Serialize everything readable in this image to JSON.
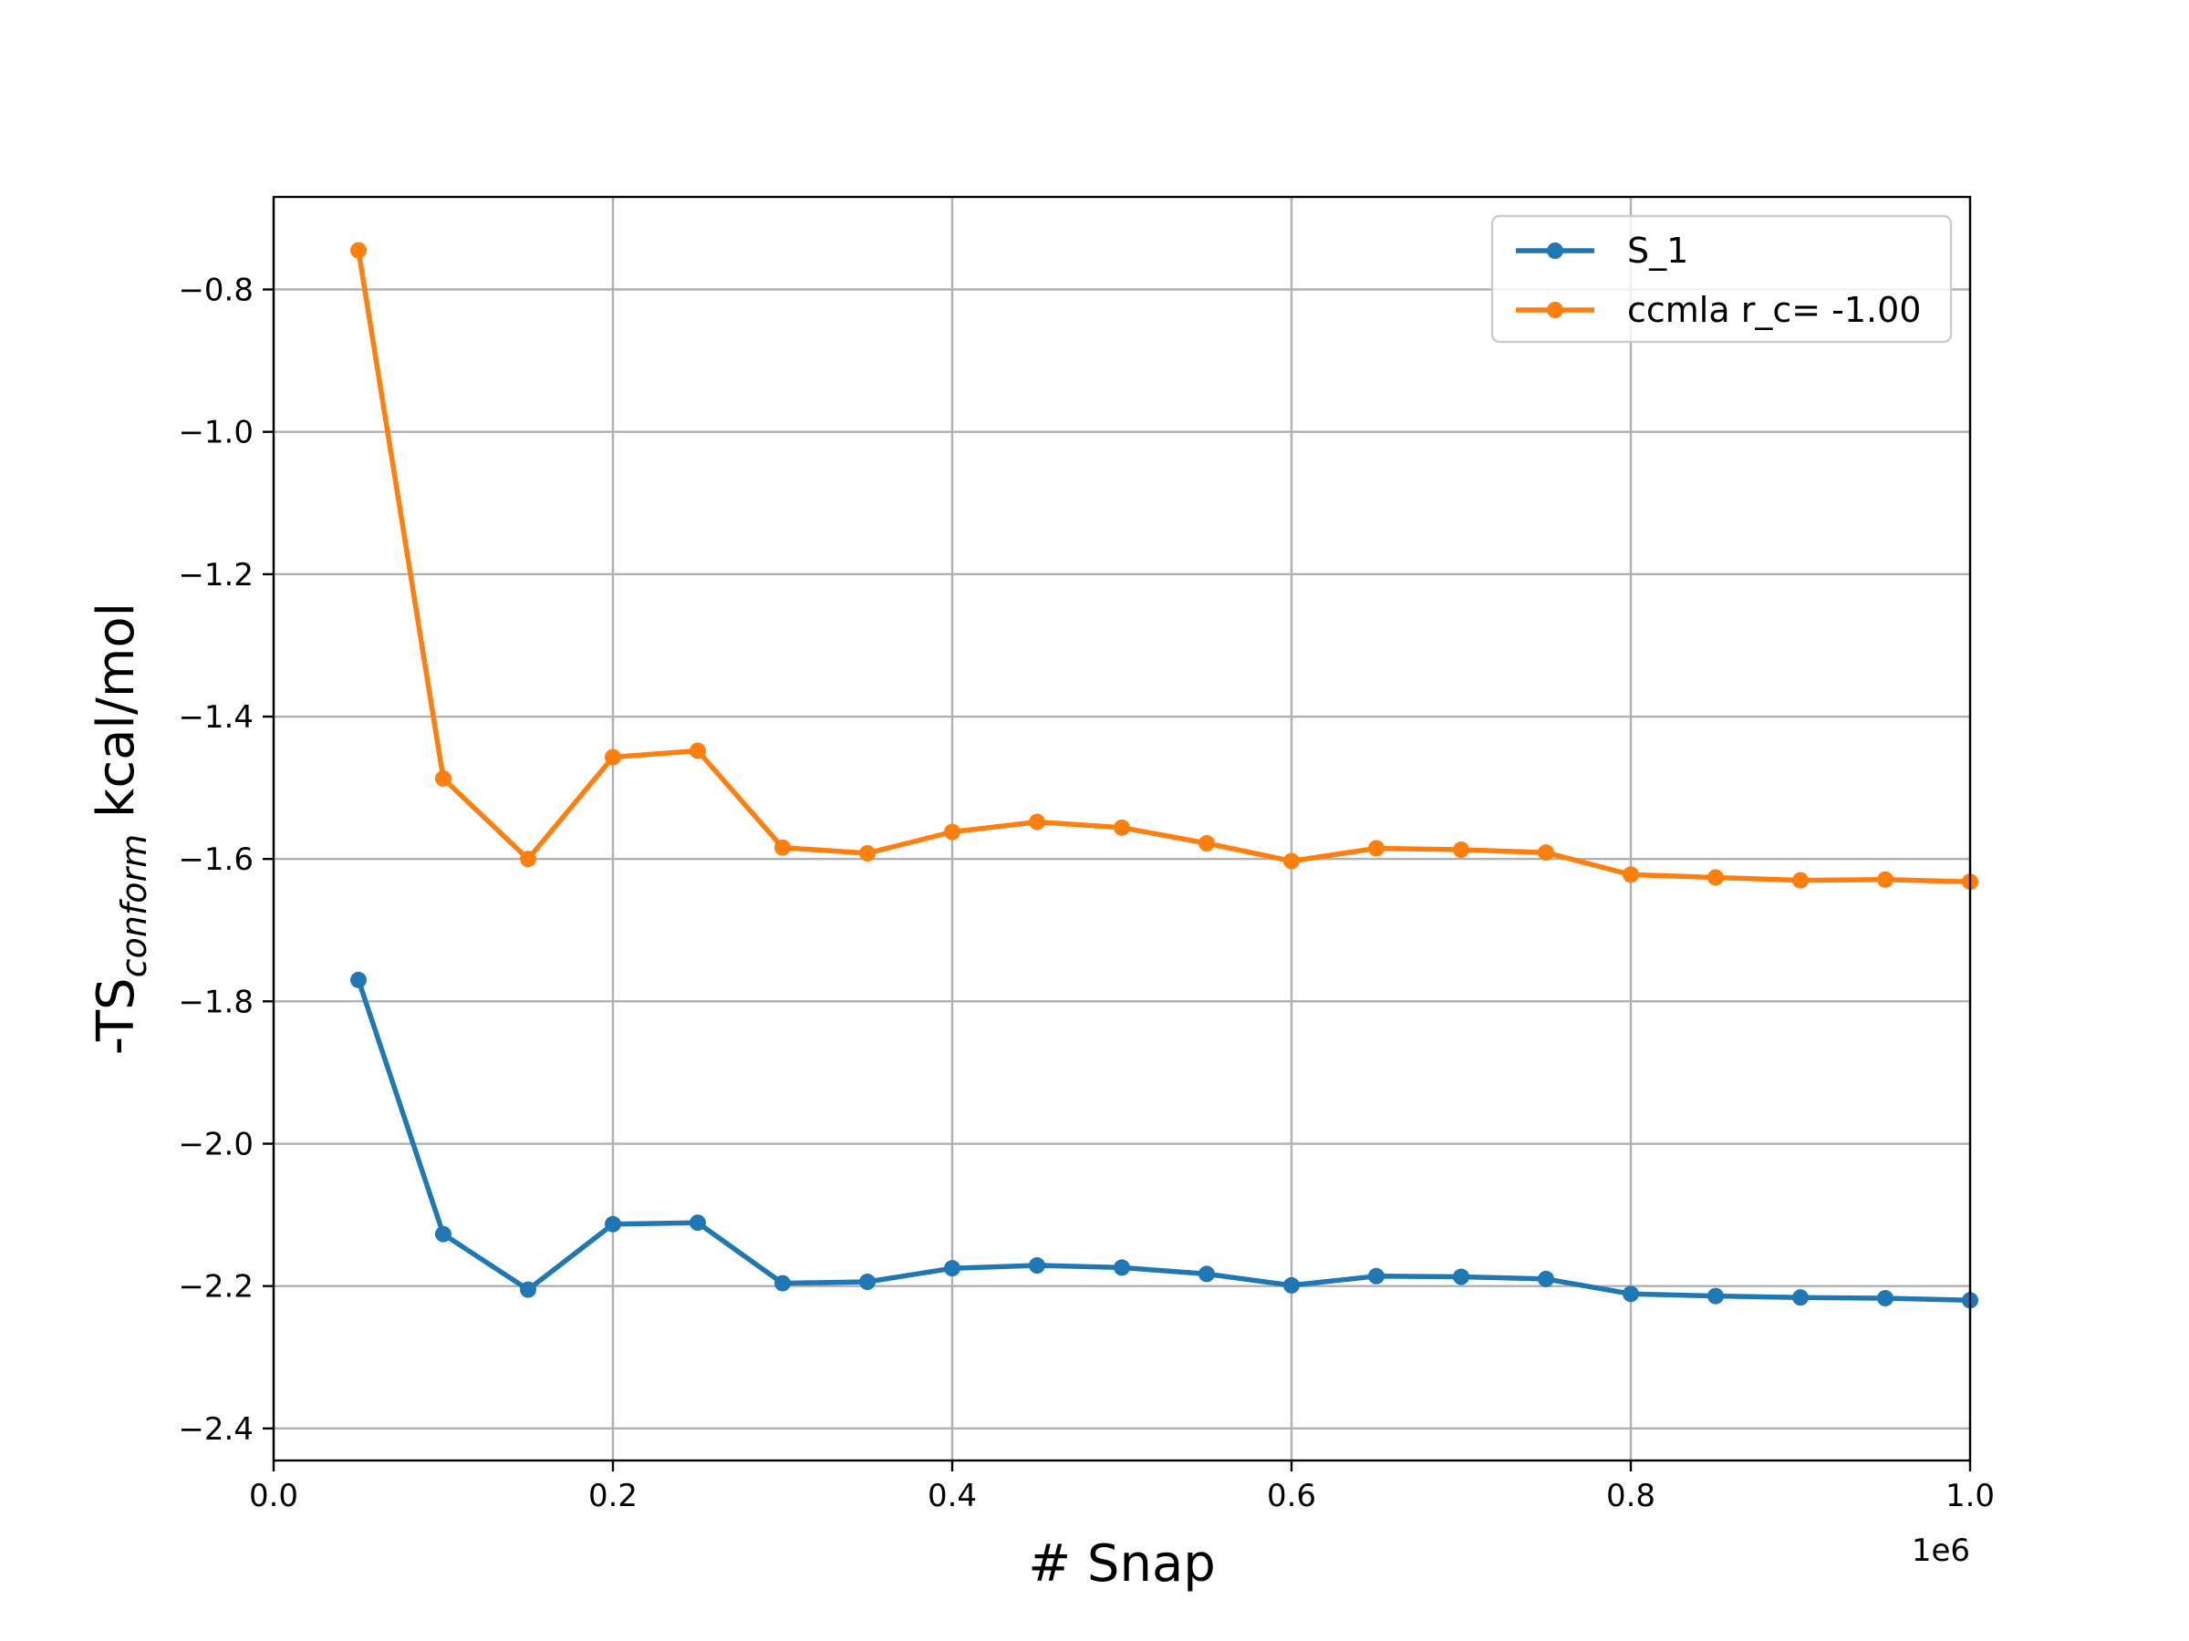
{
  "chart_data": {
    "type": "line",
    "xlabel": "# Snap",
    "ylabel": {
      "main": "-TS",
      "subscript": "conform",
      "unit": " kcal/mol"
    },
    "x_offset_label": "1e6",
    "xlim": [
      0.0,
      1.0
    ],
    "ylim": [
      -2.445,
      -0.67
    ],
    "x_ticks": [
      0.0,
      0.2,
      0.4,
      0.6,
      0.8,
      1.0
    ],
    "x_tick_labels": [
      "0.0",
      "0.2",
      "0.4",
      "0.6",
      "0.8",
      "1.0"
    ],
    "y_ticks": [
      -0.8,
      -1.0,
      -1.2,
      -1.4,
      -1.6,
      -1.8,
      -2.0,
      -2.2,
      -2.4
    ],
    "y_tick_labels": [
      "−0.8",
      "−1.0",
      "−1.2",
      "−1.4",
      "−1.6",
      "−1.8",
      "−2.0",
      "−2.2",
      "−2.4"
    ],
    "grid": true,
    "legend_position": "top-right",
    "x": [
      0.05,
      0.1,
      0.15,
      0.2,
      0.25,
      0.3,
      0.35,
      0.4,
      0.45,
      0.5,
      0.55,
      0.6,
      0.65,
      0.7,
      0.75,
      0.8,
      0.85,
      0.9,
      0.95,
      1.0
    ],
    "series": [
      {
        "name": "S_1",
        "color": "#1f77b4",
        "values": [
          -1.77,
          -2.127,
          -2.205,
          -2.113,
          -2.111,
          -2.196,
          -2.194,
          -2.175,
          -2.171,
          -2.174,
          -2.183,
          -2.199,
          -2.186,
          -2.187,
          -2.19,
          -2.211,
          -2.214,
          -2.216,
          -2.217,
          -2.22
        ]
      },
      {
        "name": "ccmla r_c= -1.00",
        "color": "#ff7f0e",
        "values": [
          -0.745,
          -1.487,
          -1.6,
          -1.457,
          -1.448,
          -1.584,
          -1.592,
          -1.562,
          -1.548,
          -1.556,
          -1.578,
          -1.603,
          -1.585,
          -1.587,
          -1.591,
          -1.622,
          -1.626,
          -1.63,
          -1.629,
          -1.632
        ]
      }
    ]
  }
}
